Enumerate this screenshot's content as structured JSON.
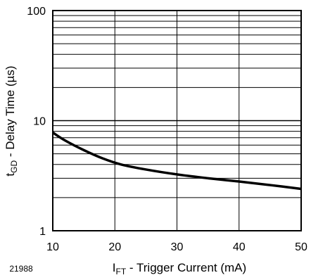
{
  "figure_id": "21988",
  "chart_data": {
    "type": "line",
    "title": "",
    "xlabel": {
      "main": "I",
      "subscript": "FT",
      "rest": " - Trigger Current (mA)"
    },
    "ylabel": {
      "main": "t",
      "subscript": "GD",
      "rest": " - Delay Time (µs)"
    },
    "xlim": [
      10,
      50
    ],
    "ylim": [
      1,
      100
    ],
    "yscale": "log",
    "xscale": "linear",
    "grid": true,
    "x_ticks": [
      "10",
      "20",
      "30",
      "40",
      "50"
    ],
    "y_ticks": [
      "1",
      "10",
      "100"
    ],
    "series": [
      {
        "x": [
          10,
          12,
          15,
          18,
          21,
          25,
          30,
          35,
          40,
          45,
          50
        ],
        "y": [
          7.8,
          6.6,
          5.4,
          4.55,
          4.0,
          3.6,
          3.25,
          3.0,
          2.8,
          2.6,
          2.4
        ]
      }
    ]
  }
}
